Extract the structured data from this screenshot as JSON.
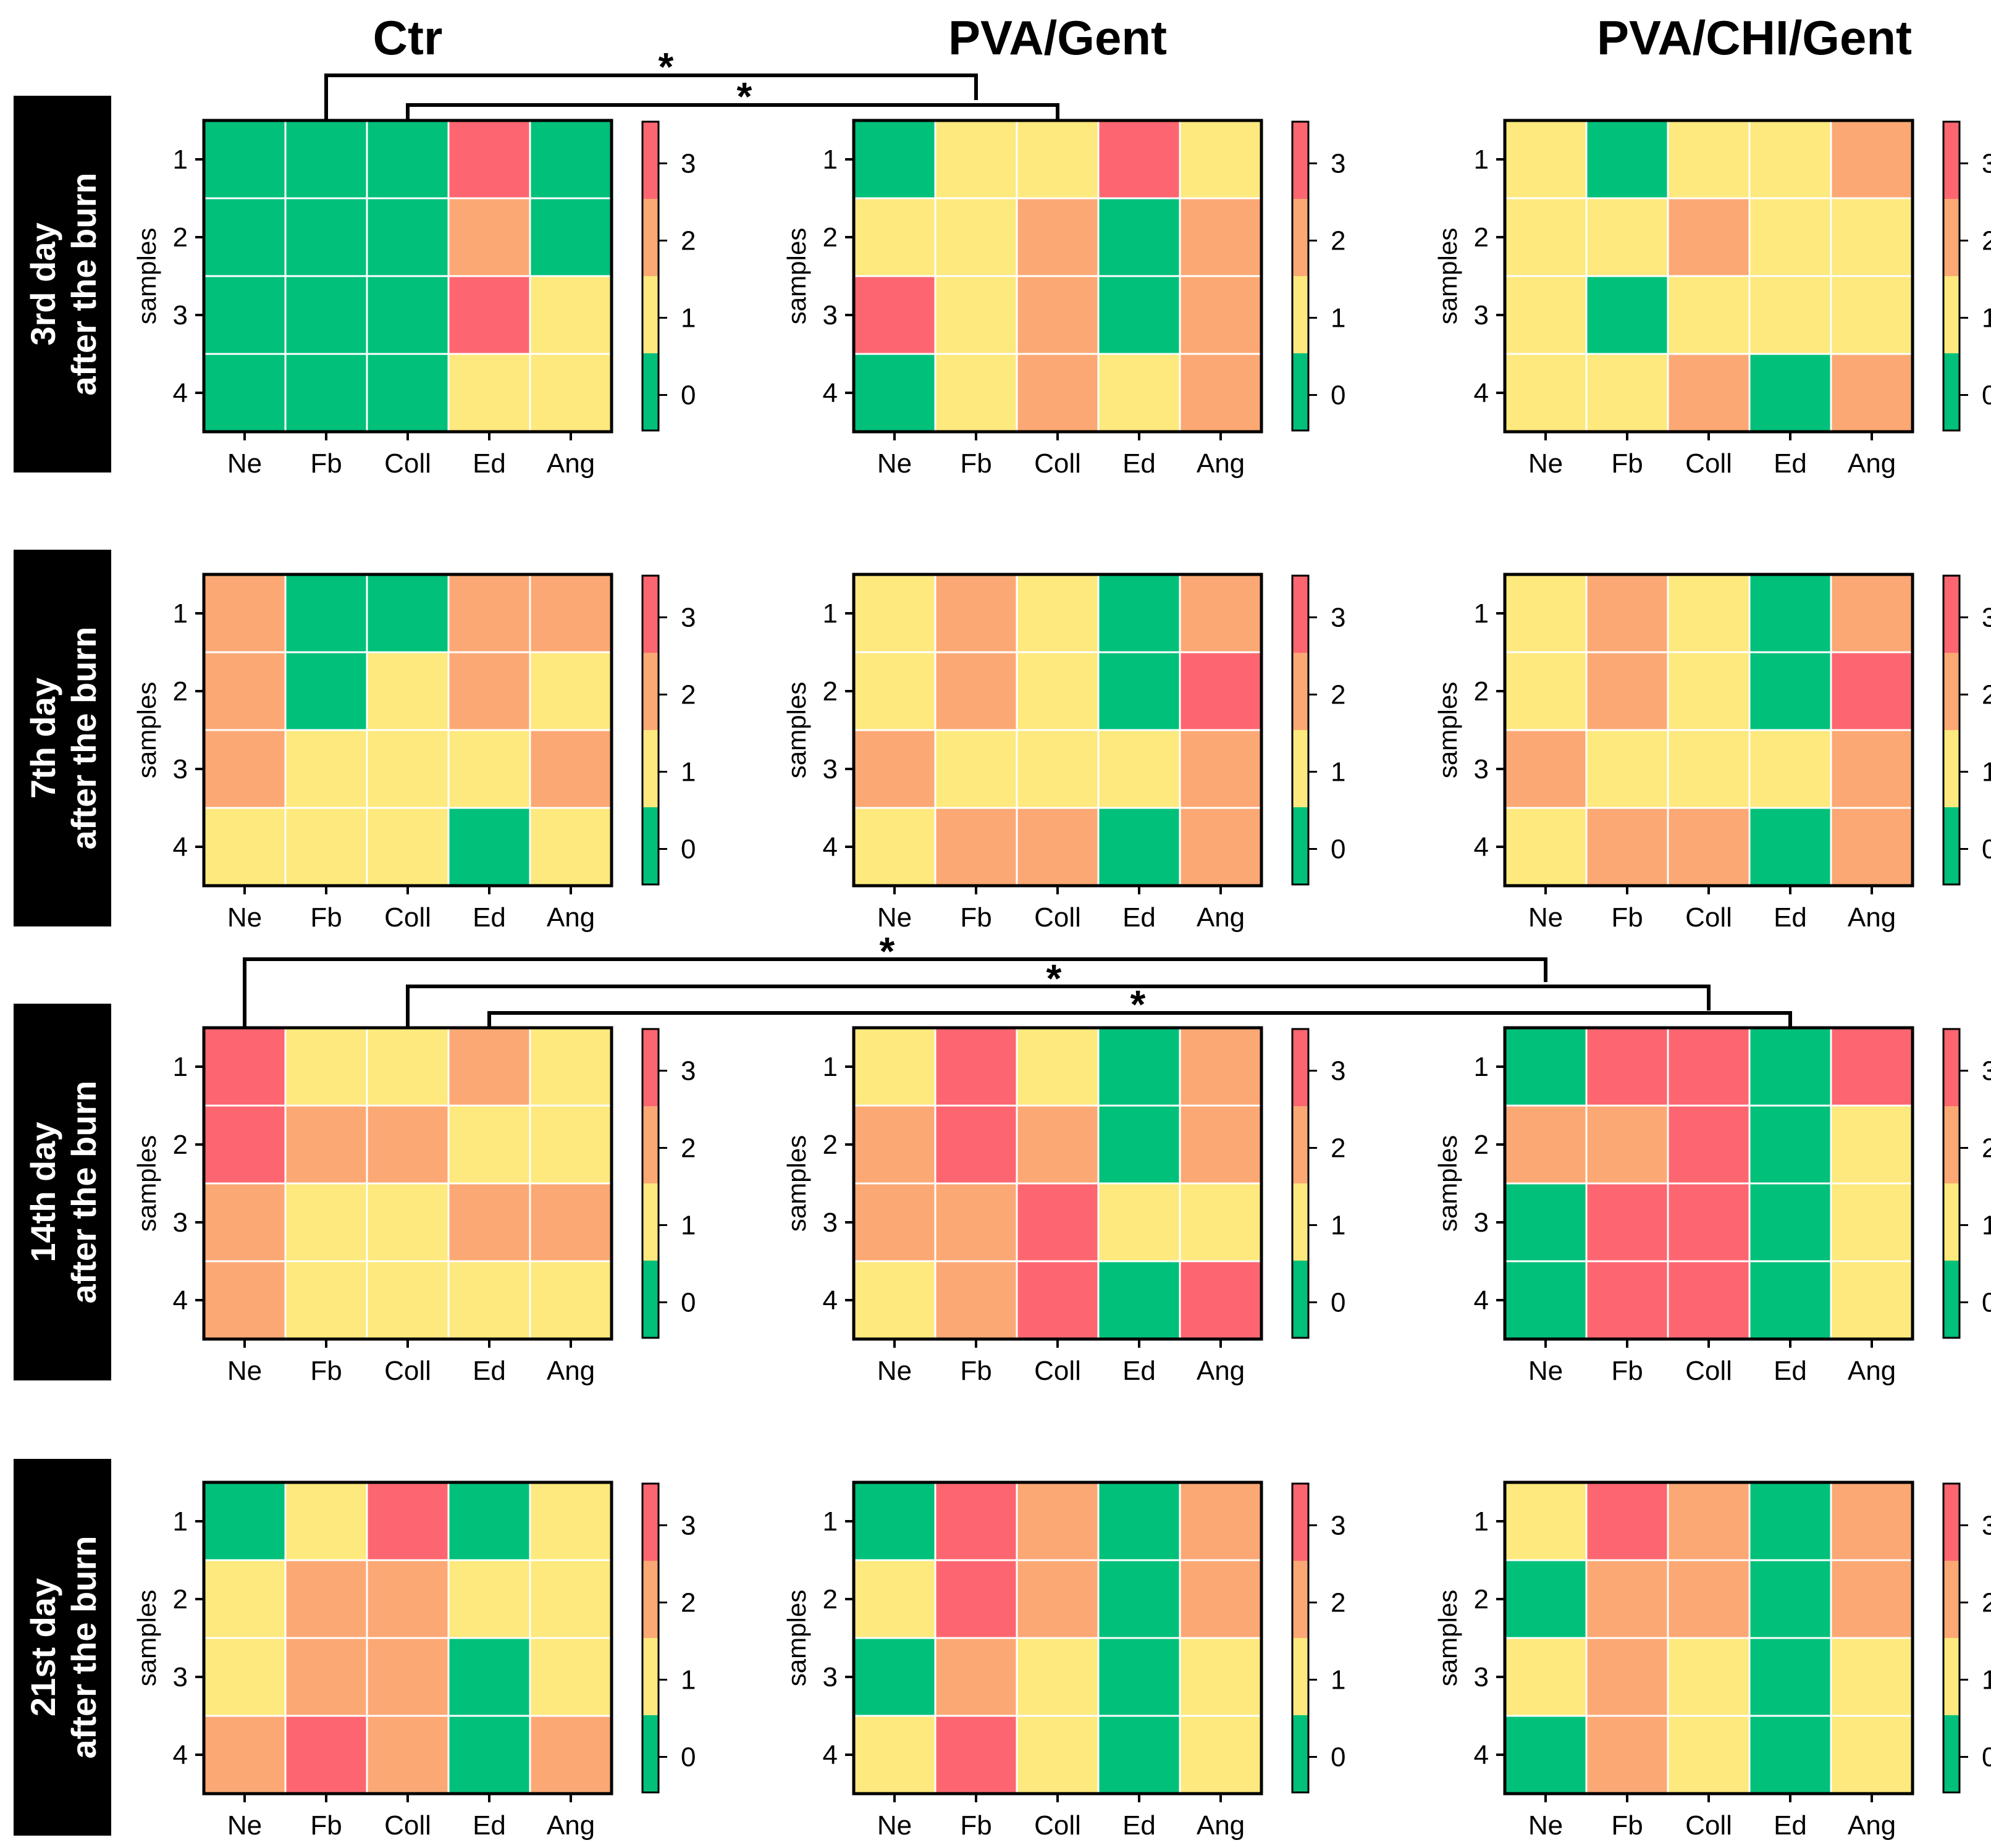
{
  "chart_data": {
    "type": "heatmap",
    "columns": [
      "Ctr",
      "PVA/Gent",
      "PVA/CHI/Gent"
    ],
    "rows": [
      "3rd day\nafter the burn",
      "7th day\nafter the burn",
      "14th day\nafter the burn",
      "21st day\nafter the burn"
    ],
    "categories": [
      "Ne",
      "Fb",
      "Coll",
      "Ed",
      "Ang"
    ],
    "samples": [
      "1",
      "2",
      "3",
      "4"
    ],
    "ylabel": "samples",
    "scale": {
      "ticks": [
        "3",
        "2",
        "1",
        "0"
      ],
      "colors": {
        "0": "#00c07a",
        "1": "#fde97d",
        "2": "#fca874",
        "3": "#fd6670"
      }
    },
    "panels": [
      [
        [
          [
            0,
            0,
            0,
            3,
            0
          ],
          [
            0,
            0,
            0,
            2,
            0
          ],
          [
            0,
            0,
            0,
            3,
            1
          ],
          [
            0,
            0,
            0,
            1,
            1
          ]
        ],
        [
          [
            0,
            1,
            1,
            3,
            1
          ],
          [
            1,
            1,
            2,
            0,
            2
          ],
          [
            3,
            1,
            2,
            0,
            2
          ],
          [
            0,
            1,
            2,
            1,
            2
          ]
        ],
        [
          [
            1,
            0,
            1,
            1,
            2
          ],
          [
            1,
            1,
            2,
            1,
            1
          ],
          [
            1,
            0,
            1,
            1,
            1
          ],
          [
            1,
            1,
            2,
            0,
            2
          ]
        ]
      ],
      [
        [
          [
            2,
            0,
            0,
            2,
            2
          ],
          [
            2,
            0,
            1,
            2,
            1
          ],
          [
            2,
            1,
            1,
            1,
            2
          ],
          [
            1,
            1,
            1,
            0,
            1
          ]
        ],
        [
          [
            1,
            2,
            1,
            0,
            2
          ],
          [
            1,
            2,
            1,
            0,
            3
          ],
          [
            2,
            1,
            1,
            1,
            2
          ],
          [
            1,
            2,
            2,
            0,
            2
          ]
        ],
        [
          [
            1,
            2,
            1,
            0,
            2
          ],
          [
            1,
            2,
            1,
            0,
            3
          ],
          [
            2,
            1,
            1,
            1,
            2
          ],
          [
            1,
            2,
            2,
            0,
            2
          ]
        ]
      ],
      [
        [
          [
            3,
            1,
            1,
            2,
            1
          ],
          [
            3,
            2,
            2,
            1,
            1
          ],
          [
            2,
            1,
            1,
            2,
            2
          ],
          [
            2,
            1,
            1,
            1,
            1
          ]
        ],
        [
          [
            1,
            3,
            1,
            0,
            2
          ],
          [
            2,
            3,
            2,
            0,
            2
          ],
          [
            2,
            2,
            3,
            1,
            1
          ],
          [
            1,
            2,
            3,
            0,
            3
          ]
        ],
        [
          [
            0,
            3,
            3,
            0,
            3
          ],
          [
            2,
            2,
            3,
            0,
            1
          ],
          [
            0,
            3,
            3,
            0,
            1
          ],
          [
            0,
            3,
            3,
            0,
            1
          ]
        ]
      ],
      [
        [
          [
            0,
            1,
            3,
            0,
            1
          ],
          [
            1,
            2,
            2,
            1,
            1
          ],
          [
            1,
            2,
            2,
            0,
            1
          ],
          [
            2,
            3,
            2,
            0,
            2
          ]
        ],
        [
          [
            0,
            3,
            2,
            0,
            2
          ],
          [
            1,
            3,
            2,
            0,
            2
          ],
          [
            0,
            2,
            1,
            0,
            1
          ],
          [
            1,
            3,
            1,
            0,
            1
          ]
        ],
        [
          [
            1,
            3,
            2,
            0,
            2
          ],
          [
            0,
            2,
            2,
            0,
            2
          ],
          [
            1,
            2,
            1,
            0,
            1
          ],
          [
            0,
            2,
            1,
            0,
            1
          ]
        ]
      ]
    ],
    "significance": [
      {
        "row": 0,
        "marker": "*",
        "comparisons": [
          "Ctr Fb vs PVA/Gent Fb",
          "Ctr Coll vs PVA/Gent Coll"
        ]
      },
      {
        "row": 2,
        "marker": "*",
        "comparisons": [
          "Ctr Ne vs PVA/CHI/Gent Ne",
          "Ctr Coll vs PVA/CHI/Gent Coll",
          "Ctr Ed vs PVA/CHI/Gent Ed"
        ]
      }
    ]
  }
}
